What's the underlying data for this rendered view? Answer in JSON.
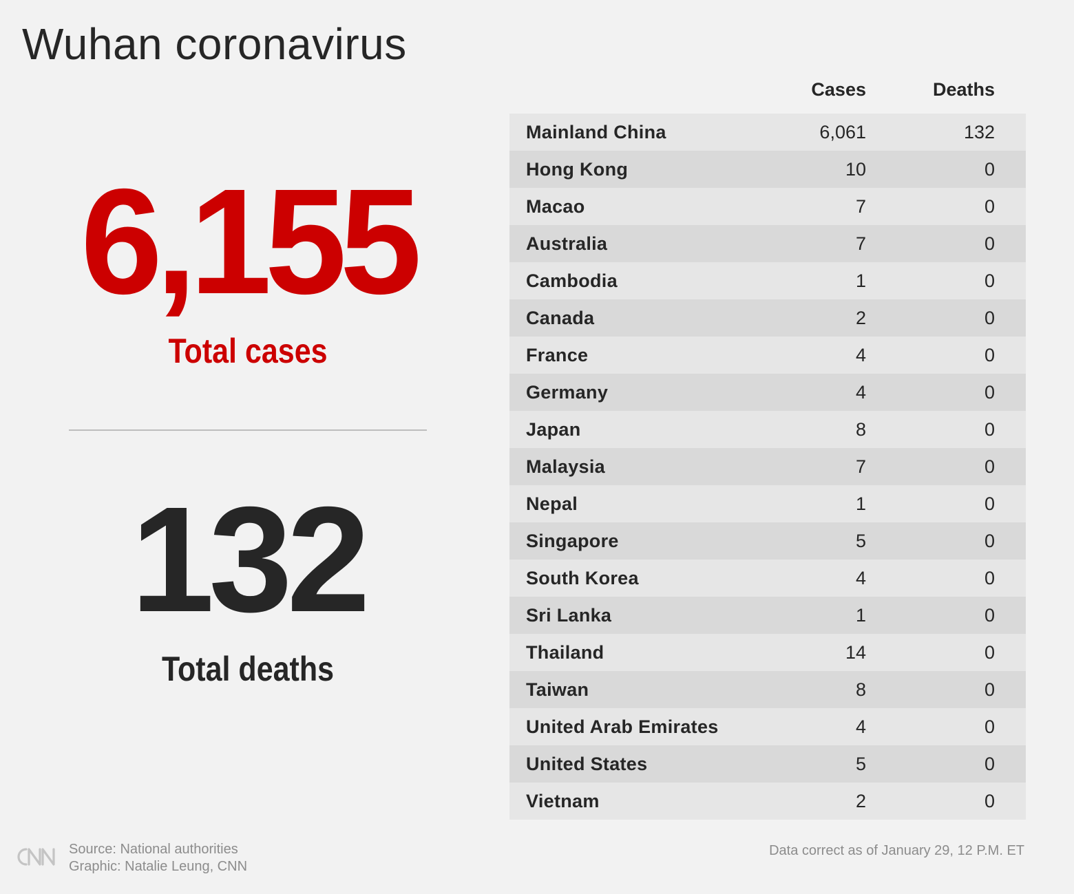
{
  "title": "Wuhan coronavirus",
  "totals": {
    "cases_value": "6,155",
    "cases_label": "Total cases",
    "deaths_value": "132",
    "deaths_label": "Total deaths"
  },
  "colors": {
    "accent": "#cc0000",
    "text": "#262626",
    "background": "#f2f2f2",
    "row": "#e6e6e6",
    "row_alt": "#d9d9d9",
    "muted": "#8c8c8c"
  },
  "chart_data": {
    "type": "table",
    "columns": [
      "",
      "Cases",
      "Deaths"
    ],
    "rows": [
      {
        "country": "Mainland China",
        "cases": "6,061",
        "deaths": "132"
      },
      {
        "country": "Hong Kong",
        "cases": "10",
        "deaths": "0"
      },
      {
        "country": "Macao",
        "cases": "7",
        "deaths": "0"
      },
      {
        "country": "Australia",
        "cases": "7",
        "deaths": "0"
      },
      {
        "country": "Cambodia",
        "cases": "1",
        "deaths": "0"
      },
      {
        "country": "Canada",
        "cases": "2",
        "deaths": "0"
      },
      {
        "country": "France",
        "cases": "4",
        "deaths": "0"
      },
      {
        "country": "Germany",
        "cases": "4",
        "deaths": "0"
      },
      {
        "country": "Japan",
        "cases": "8",
        "deaths": "0"
      },
      {
        "country": "Malaysia",
        "cases": "7",
        "deaths": "0"
      },
      {
        "country": "Nepal",
        "cases": "1",
        "deaths": "0"
      },
      {
        "country": "Singapore",
        "cases": "5",
        "deaths": "0"
      },
      {
        "country": "South Korea",
        "cases": "4",
        "deaths": "0"
      },
      {
        "country": "Sri Lanka",
        "cases": "1",
        "deaths": "0"
      },
      {
        "country": "Thailand",
        "cases": "14",
        "deaths": "0"
      },
      {
        "country": "Taiwan",
        "cases": "8",
        "deaths": "0"
      },
      {
        "country": "United Arab Emirates",
        "cases": "4",
        "deaths": "0"
      },
      {
        "country": "United States",
        "cases": "5",
        "deaths": "0"
      },
      {
        "country": "Vietnam",
        "cases": "2",
        "deaths": "0"
      }
    ]
  },
  "footer": {
    "logo": "CNN",
    "source": "Source: National authorities",
    "graphic": "Graphic: Natalie Leung, CNN",
    "updated": "Data correct as of January 29, 12 P.M. ET"
  }
}
